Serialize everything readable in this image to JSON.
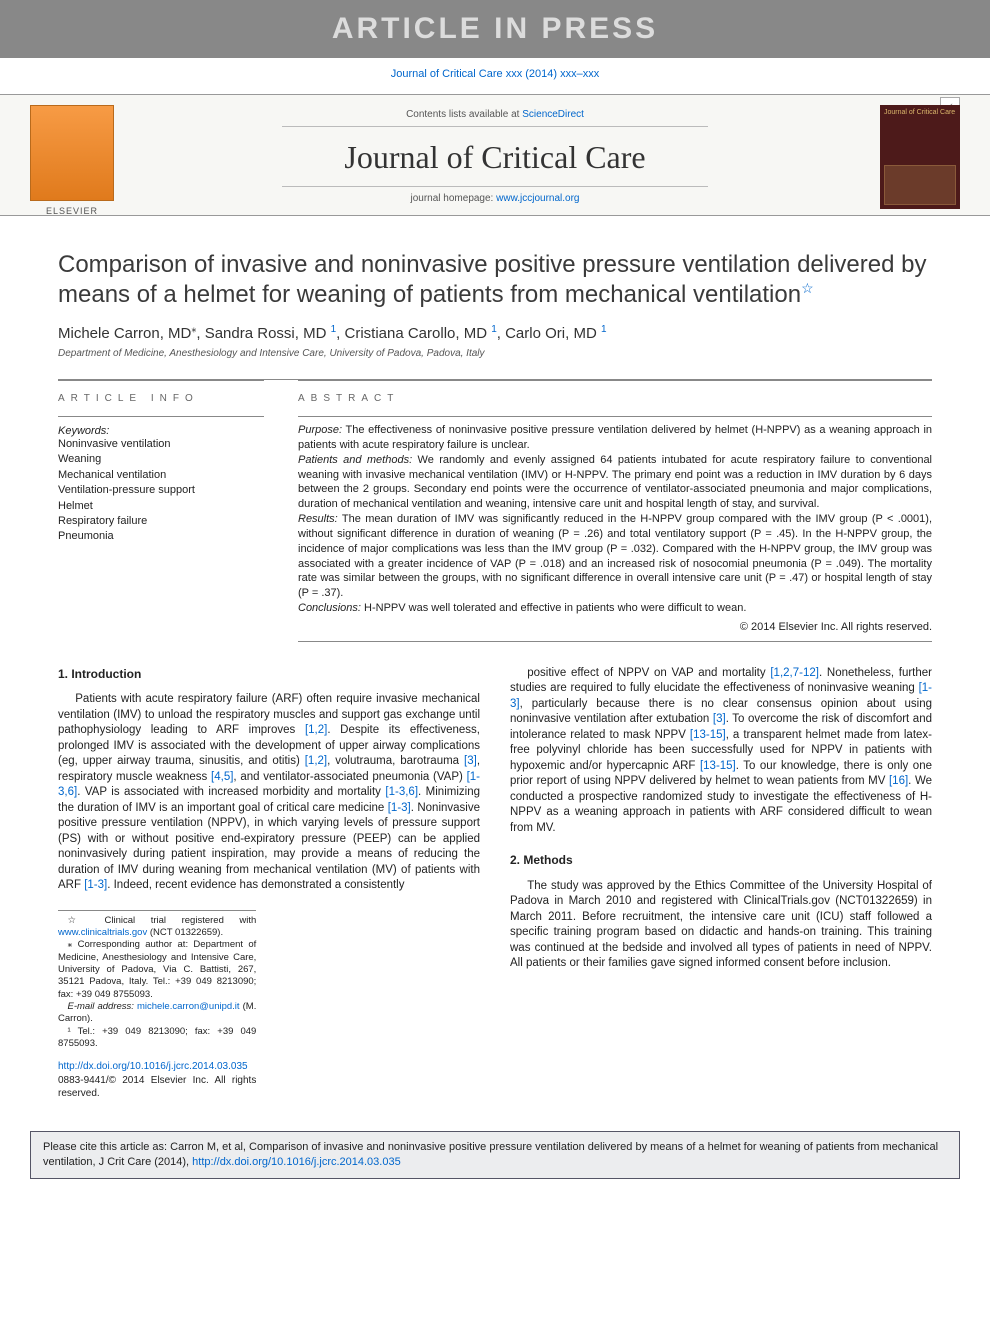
{
  "banner": "ARTICLE IN PRESS",
  "cite_line": "Journal of Critical Care xxx (2014) xxx–xxx",
  "masthead": {
    "sd_prefix": "Contents lists available at ",
    "sd_link": "ScienceDirect",
    "journal": "Journal of Critical Care",
    "homepage_prefix": "journal homepage: ",
    "homepage_link": "www.jccjournal.org",
    "cover_title": "Journal of Critical Care"
  },
  "title": "Comparison of invasive and noninvasive positive pressure ventilation delivered by means of a helmet for weaning of patients from mechanical ventilation",
  "title_note": "☆",
  "authors_html": "Michele Carron, MD<sup class='star'>⁎</sup>, Sandra Rossi, MD <sup>1</sup>, Cristiana Carollo, MD <sup>1</sup>, Carlo Ori, MD <sup>1</sup>",
  "affiliation": "Department of Medicine, Anesthesiology and Intensive Care, University of Padova, Padova, Italy",
  "info_head": "ARTICLE INFO",
  "abs_head": "ABSTRACT",
  "keywords_label": "Keywords:",
  "keywords": [
    "Noninvasive ventilation",
    "Weaning",
    "Mechanical ventilation",
    "Ventilation-pressure support",
    "Helmet",
    "Respiratory failure",
    "Pneumonia"
  ],
  "abstract": {
    "purpose_label": "Purpose:",
    "purpose": "The effectiveness of noninvasive positive pressure ventilation delivered by helmet (H-NPPV) as a weaning approach in patients with acute respiratory failure is unclear.",
    "patients_label": "Patients and methods:",
    "patients": "We randomly and evenly assigned 64 patients intubated for acute respiratory failure to conventional weaning with invasive mechanical ventilation (IMV) or H-NPPV. The primary end point was a reduction in IMV duration by 6 days between the 2 groups. Secondary end points were the occurrence of ventilator-associated pneumonia and major complications, duration of mechanical ventilation and weaning, intensive care unit and hospital length of stay, and survival.",
    "results_label": "Results:",
    "results": "The mean duration of IMV was significantly reduced in the H-NPPV group compared with the IMV group (P < .0001), without significant difference in duration of weaning (P = .26) and total ventilatory support (P = .45). In the H-NPPV group, the incidence of major complications was less than the IMV group (P = .032). Compared with the H-NPPV group, the IMV group was associated with a greater incidence of VAP (P = .018) and an increased risk of nosocomial pneumonia (P = .049). The mortality rate was similar between the groups, with no significant difference in overall intensive care unit (P = .47) or hospital length of stay (P = .37).",
    "conclusions_label": "Conclusions:",
    "conclusions": "H-NPPV was well tolerated and effective in patients who were difficult to wean."
  },
  "copyright": "© 2014 Elsevier Inc. All rights reserved.",
  "sections": {
    "intro_head": "1. Introduction",
    "methods_head": "2. Methods"
  },
  "intro_html": "Patients with acute respiratory failure (ARF) often require invasive mechanical ventilation (IMV) to unload the respiratory muscles and support gas exchange until pathophysiology leading to ARF improves <a href='#'>[1,2]</a>. Despite its effectiveness, prolonged IMV is associated with the development of upper airway complications (eg, upper airway trauma, sinusitis, and otitis) <a href='#'>[1,2]</a>, volutrauma, barotrauma <a href='#'>[3]</a>, respiratory muscle weakness <a href='#'>[4,5]</a>, and ventilator-associated pneumonia (VAP) <a href='#'>[1-3,6]</a>. VAP is associated with increased morbidity and mortality <a href='#'>[1-3,6]</a>. Minimizing the duration of IMV is an important goal of critical care medicine <a href='#'>[1-3]</a>. Noninvasive positive pressure ventilation (NPPV), in which varying levels of pressure support (PS) with or without positive end-expiratory pressure (PEEP) can be applied noninvasively during patient inspiration, may provide a means of reducing the duration of IMV during weaning from mechanical ventilation (MV) of patients with ARF <a href='#'>[1-3]</a>. Indeed, recent evidence has demonstrated a consistently",
  "intro_col2_html": "positive effect of NPPV on VAP and mortality <a href='#'>[1,2,7-12]</a>. Nonetheless, further studies are required to fully elucidate the effectiveness of noninvasive weaning <a href='#'>[1-3]</a>, particularly because there is no clear consensus opinion about using noninvasive ventilation after extubation <a href='#'>[3]</a>. To overcome the risk of discomfort and intolerance related to mask NPPV <a href='#'>[13-15]</a>, a transparent helmet made from latex-free polyvinyl chloride has been successfully used for NPPV in patients with hypoxemic and/or hypercapnic ARF <a href='#'>[13-15]</a>. To our knowledge, there is only one prior report of using NPPV delivered by helmet to wean patients from MV <a href='#'>[16]</a>. We conducted a prospective randomized study to investigate the effectiveness of H-NPPV as a weaning approach in patients with ARF considered difficult to wean from MV.",
  "methods_html": "The study was approved by the Ethics Committee of the University Hospital of Padova in March 2010 and registered with ClinicalTrials.gov (NCT01322659) in March 2011. Before recruitment, the intensive care unit (ICU) staff followed a specific training program based on didactic and hands-on training. This training was continued at the bedside and involved all types of patients in need of NPPV. All patients or their families gave signed informed consent before inclusion.",
  "footnotes": {
    "trial": "☆  Clinical trial registered with ",
    "trial_link": "www.clinicaltrials.gov",
    "trial_tail": " (NCT 01322659).",
    "corr": "⁎  Corresponding author at: Department of Medicine, Anesthesiology and Intensive Care, University of Padova, Via C. Battisti, 267, 35121 Padova, Italy. Tel.: +39 049 8213090; fax: +39 049 8755093.",
    "email_label": "E-mail address: ",
    "email": "michele.carron@unipd.it",
    "email_tail": " (M. Carron).",
    "fn1": "¹  Tel.: +39 049 8213090; fax: +39 049 8755093."
  },
  "doi": {
    "link": "http://dx.doi.org/10.1016/j.jcrc.2014.03.035",
    "copy": "0883-9441/© 2014 Elsevier Inc. All rights reserved."
  },
  "citebox_html": "Please cite this article as: Carron M, et al, Comparison of invasive and noninvasive positive pressure ventilation delivered by means of a helmet for weaning of patients from mechanical ventilation, J Crit Care (2014), <a href='#'>http://dx.doi.org/10.1016/j.jcrc.2014.03.035</a>",
  "colors": {
    "banner_bg": "#888888",
    "banner_fg": "#dcdcdc",
    "link": "#0066cc",
    "rule": "#888888",
    "citebox_bg": "#ecedef",
    "citebox_border": "#556",
    "cover_bg": "#4d1a1a"
  },
  "fonts": {
    "body": "Arial, sans-serif",
    "journal": "Palatino Linotype, Book Antiqua, Palatino, serif",
    "title_size": 24,
    "abstract_size": 11,
    "body_size": 11.5
  }
}
